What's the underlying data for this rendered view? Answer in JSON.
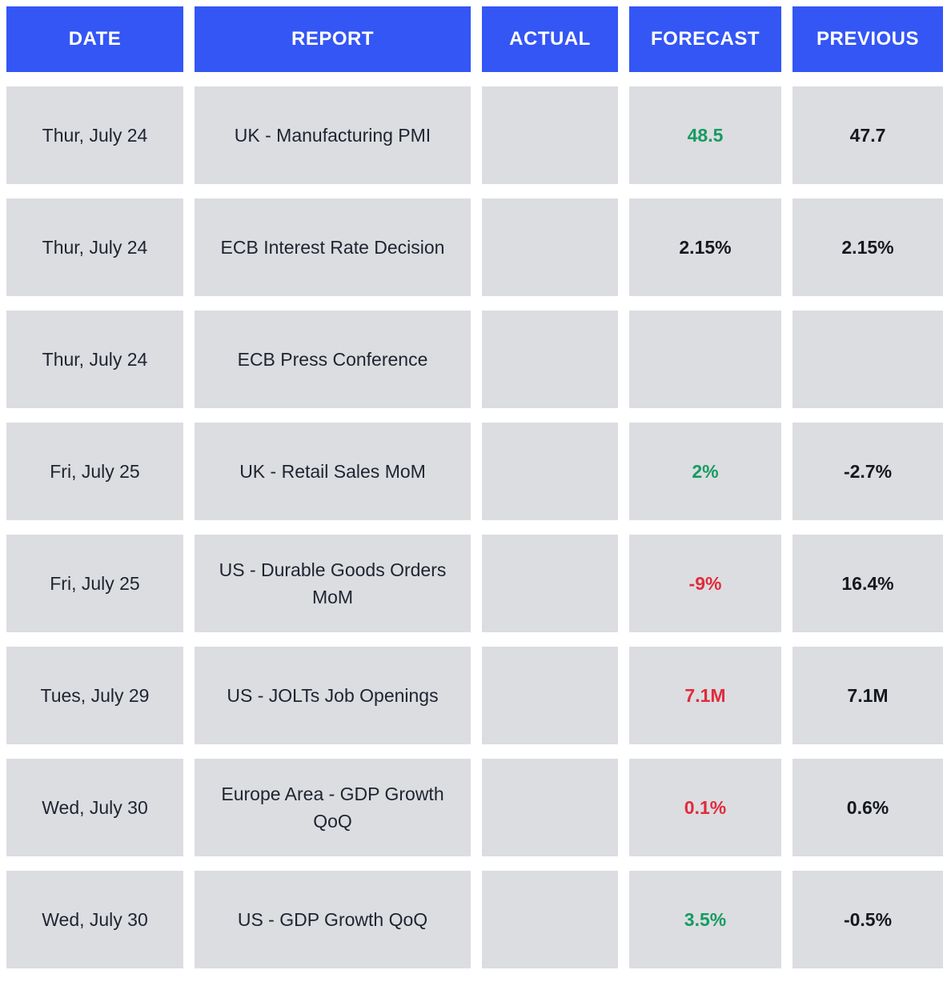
{
  "colors": {
    "header_bg": "#3456F5",
    "cell_bg": "#dcdde0",
    "green": "#169b62",
    "red": "#e02b3c",
    "text_dark": "#1e2430"
  },
  "table": {
    "headers": [
      "DATE",
      "REPORT",
      "ACTUAL",
      "FORECAST",
      "PREVIOUS"
    ],
    "rows": [
      {
        "date": "Thur, July 24",
        "report": "UK - Manufacturing PMI",
        "actual": "",
        "forecast": "48.5",
        "forecast_color": "green",
        "previous": "47.7"
      },
      {
        "date": "Thur, July 24",
        "report": "ECB Interest Rate Decision",
        "actual": "",
        "forecast": "2.15%",
        "forecast_color": "black",
        "previous": "2.15%"
      },
      {
        "date": "Thur, July 24",
        "report": "ECB Press Conference",
        "actual": "",
        "forecast": "",
        "forecast_color": "black",
        "previous": ""
      },
      {
        "date": "Fri, July 25",
        "report": "UK - Retail Sales MoM",
        "actual": "",
        "forecast": "2%",
        "forecast_color": "green",
        "previous": "-2.7%"
      },
      {
        "date": "Fri, July 25",
        "report": "US - Durable Goods Orders MoM",
        "actual": "",
        "forecast": "-9%",
        "forecast_color": "red",
        "previous": "16.4%"
      },
      {
        "date": "Tues, July 29",
        "report": "US - JOLTs Job Openings",
        "actual": "",
        "forecast": "7.1M",
        "forecast_color": "red",
        "previous": "7.1M"
      },
      {
        "date": "Wed, July 30",
        "report": "Europe Area - GDP Growth QoQ",
        "actual": "",
        "forecast": "0.1%",
        "forecast_color": "red",
        "previous": "0.6%"
      },
      {
        "date": "Wed, July 30",
        "report": "US - GDP Growth QoQ",
        "actual": "",
        "forecast": "3.5%",
        "forecast_color": "green",
        "previous": "-0.5%"
      }
    ]
  }
}
